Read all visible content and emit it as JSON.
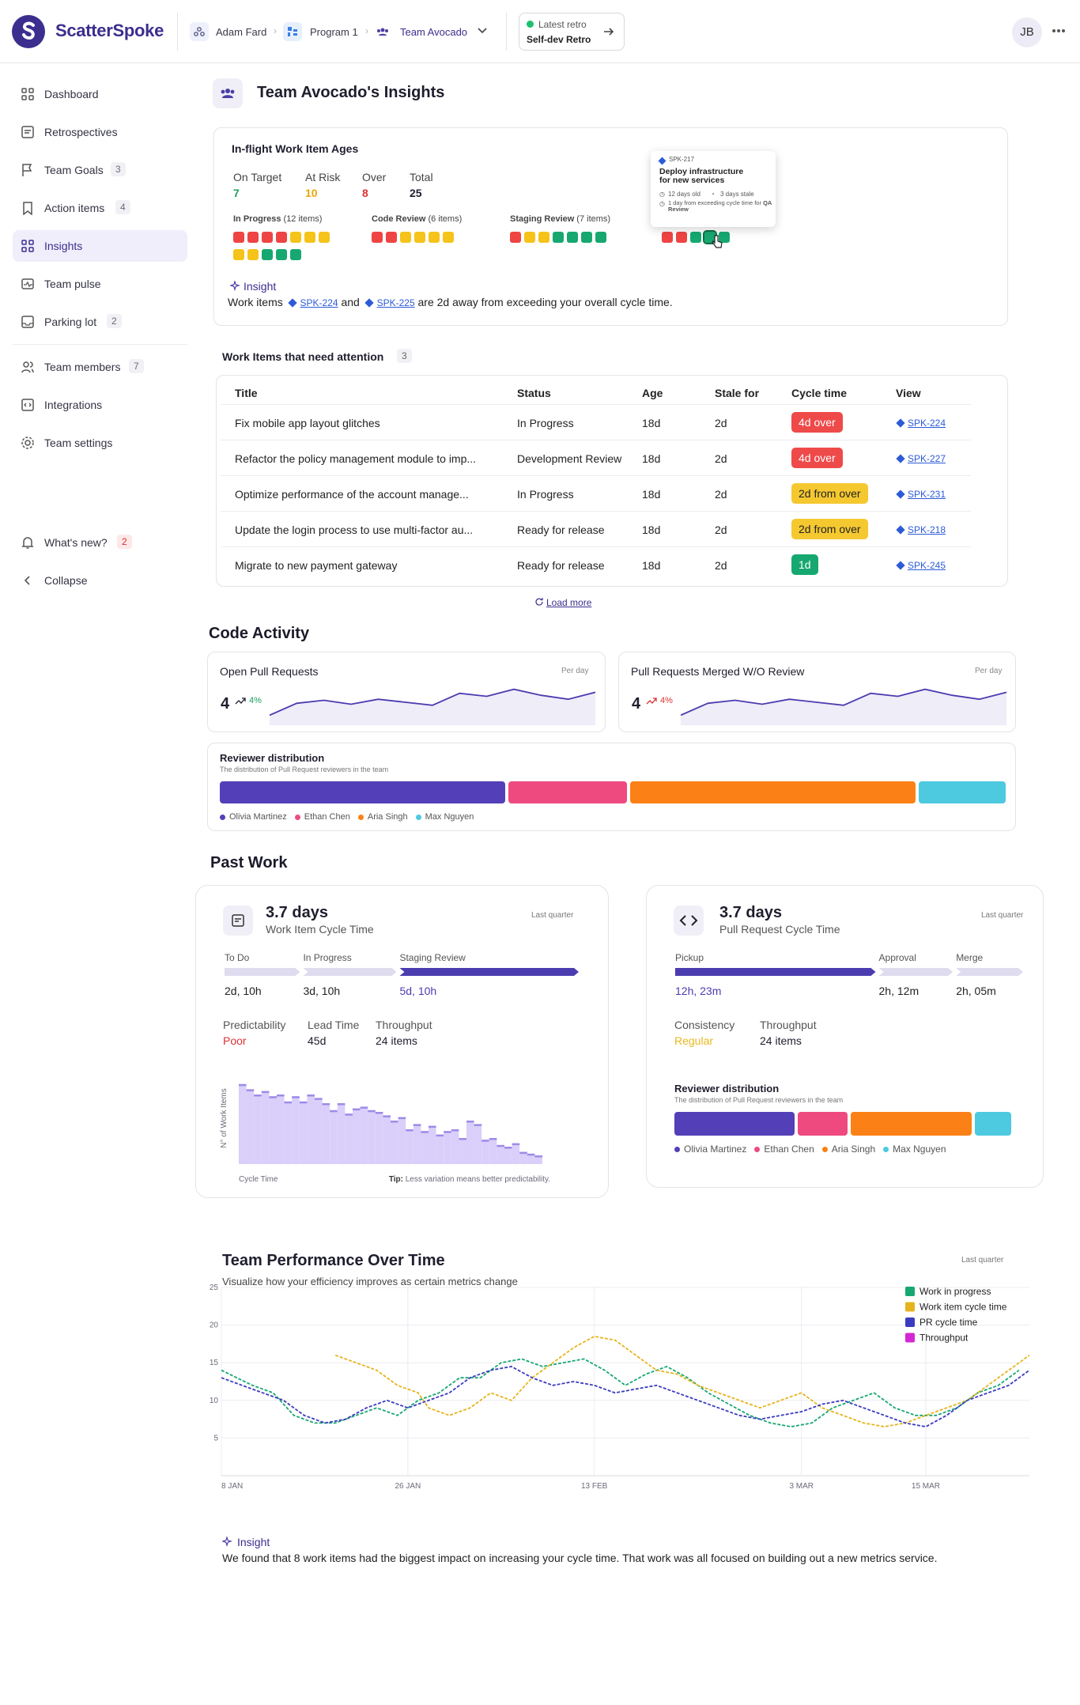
{
  "app": {
    "name": "ScatterSpoke"
  },
  "breadcrumb": {
    "org": "Adam Fard",
    "program": "Program 1",
    "team": "Team Avocado"
  },
  "retro": {
    "label": "Latest retro",
    "name": "Self-dev Retro"
  },
  "user": {
    "initials": "JB"
  },
  "sidebar": {
    "items": [
      {
        "label": "Dashboard"
      },
      {
        "label": "Retrospectives"
      },
      {
        "label": "Team Goals",
        "count": "3"
      },
      {
        "label": "Action items",
        "count": "4"
      },
      {
        "label": "Insights"
      },
      {
        "label": "Team pulse"
      },
      {
        "label": "Parking lot",
        "count": "2"
      },
      {
        "label": "Team members",
        "count": "7"
      },
      {
        "label": "Integrations"
      },
      {
        "label": "Team settings"
      }
    ],
    "whats_new": {
      "label": "What's new?",
      "count": "2"
    },
    "collapse": "Collapse"
  },
  "page": {
    "title": "Team Avocado's Insights"
  },
  "inflight": {
    "title": "In-flight Work Item Ages",
    "stats": [
      {
        "label": "On Target",
        "value": "7",
        "color": "#1ba160"
      },
      {
        "label": "At Risk",
        "value": "10",
        "color": "#e8a80c"
      },
      {
        "label": "Over",
        "value": "8",
        "color": "#e03131"
      },
      {
        "label": "Total",
        "value": "25",
        "color": "#1e1e2e"
      }
    ],
    "groups": [
      {
        "name": "In Progress",
        "count": "(12 items)",
        "colors": [
          "r",
          "r",
          "r",
          "r",
          "y",
          "y",
          "y",
          "y",
          "y",
          "g",
          "g",
          "g"
        ]
      },
      {
        "name": "Code Review",
        "count": "(6 items)",
        "colors": [
          "r",
          "r",
          "y",
          "y",
          "y",
          "y"
        ]
      },
      {
        "name": "Staging Review",
        "count": "(7 items)",
        "colors": [
          "r",
          "y",
          "y",
          "g",
          "g",
          "g",
          "g"
        ]
      },
      {
        "name": "",
        "count": "",
        "colors": [
          "r",
          "r",
          "g",
          "g",
          "g"
        ]
      }
    ],
    "tooltip": {
      "id": "SPK-217",
      "title": "Deploy infrastructure for new services",
      "age": "12 days old",
      "stale": "3 days stale",
      "note_prefix": "1 day from exceeding cycle time for ",
      "note_bold": "QA Review"
    },
    "insight": {
      "label": "Insight",
      "prefix": "Work items",
      "item1": "SPK-224",
      "and": "and",
      "item2": "SPK-225",
      "suffix": "are 2d away from exceeding your overall cycle time."
    }
  },
  "attention": {
    "title": "Work Items that need attention",
    "count": "3",
    "columns": [
      "Title",
      "Status",
      "Age",
      "Stale for",
      "Cycle time",
      "View"
    ],
    "rows": [
      {
        "title": "Fix mobile app layout glitches",
        "status": "In Progress",
        "age": "18d",
        "stale": "2d",
        "cycle": "4d over",
        "cycle_type": "red",
        "view": "SPK-224"
      },
      {
        "title": "Refactor the policy management module to imp...",
        "status": "Development Review",
        "age": "18d",
        "stale": "2d",
        "cycle": "4d over",
        "cycle_type": "red",
        "view": "SPK-227"
      },
      {
        "title": "Optimize performance of the account manage...",
        "status": "In Progress",
        "age": "18d",
        "stale": "2d",
        "cycle": "2d from over",
        "cycle_type": "yellow",
        "view": "SPK-231"
      },
      {
        "title": "Update the login process to use multi-factor au...",
        "status": "Ready for release",
        "age": "18d",
        "stale": "2d",
        "cycle": "2d from over",
        "cycle_type": "yellow",
        "view": "SPK-218"
      },
      {
        "title": "Migrate to new payment gateway",
        "status": "Ready for release",
        "age": "18d",
        "stale": "2d",
        "cycle": "1d",
        "cycle_type": "green",
        "view": "SPK-245"
      }
    ],
    "load_more": "Load more"
  },
  "code_activity": {
    "title": "Code Activity",
    "open_pr": {
      "title": "Open Pull Requests",
      "period": "Per day",
      "value": "4",
      "change": "4%",
      "change_color": "#1ba160",
      "trend": [
        3,
        4.2,
        4.5,
        4.1,
        4.6,
        4.3,
        4.0,
        5.2,
        4.9,
        5.6,
        5.0,
        4.6,
        5.3
      ]
    },
    "merged_pr": {
      "title": "Pull Requests Merged W/O Review",
      "period": "Per day",
      "value": "4",
      "change": "4%",
      "change_color": "#e03131",
      "trend": [
        3,
        4.2,
        4.5,
        4.1,
        4.6,
        4.3,
        4.0,
        5.2,
        4.9,
        5.6,
        5.0,
        4.6,
        5.3
      ]
    },
    "reviewers": {
      "title": "Reviewer distribution",
      "subtitle": "The distribution of Pull Request reviewers in the team",
      "people": [
        {
          "name": "Olivia Martinez",
          "share": 0.36,
          "color": "#5340b8"
        },
        {
          "name": "Ethan Chen",
          "share": 0.15,
          "color": "#ee4a80"
        },
        {
          "name": "Aria Singh",
          "share": 0.36,
          "color": "#fb8116"
        },
        {
          "name": "Max Nguyen",
          "share": 0.11,
          "color": "#4dc9e0"
        }
      ]
    }
  },
  "past_work": {
    "title": "Past Work",
    "work_item": {
      "value": "3.7 days",
      "label": "Work Item Cycle Time",
      "period": "Last quarter",
      "stages": [
        {
          "name": "To Do",
          "value": "2d, 10h",
          "share": 0.22
        },
        {
          "name": "In Progress",
          "value": "3d, 10h",
          "share": 0.27
        },
        {
          "name": "Staging Review",
          "value": "5d, 10h",
          "share": 0.51
        }
      ],
      "metrics": [
        {
          "label": "Predictability",
          "value": "Poor",
          "color": "#e03131"
        },
        {
          "label": "Lead Time",
          "value": "45d",
          "color": "#1e1e2e"
        },
        {
          "label": "Throughput",
          "value": "24 items",
          "color": "#1e1e2e"
        }
      ],
      "ylabel": "N° of Work Items",
      "xlabel": "Cycle Time",
      "tip_bold": "Tip:",
      "tip": "Less variation means better predictability.",
      "histogram": [
        92,
        86,
        80,
        84,
        78,
        80,
        72,
        78,
        72,
        80,
        76,
        70,
        62,
        70,
        58,
        64,
        66,
        62,
        60,
        56,
        50,
        54,
        40,
        46,
        38,
        44,
        34,
        38,
        40,
        30,
        50,
        46,
        28,
        30,
        22,
        20,
        24,
        14,
        12,
        10
      ]
    },
    "pr_cycle": {
      "value": "3.7 days",
      "label": "Pull Request Cycle Time",
      "period": "Last quarter",
      "stages": [
        {
          "name": "Pickup",
          "value": "12h, 23m",
          "share": 0.58
        },
        {
          "name": "Approval",
          "value": "2h, 12m",
          "share": 0.22
        },
        {
          "name": "Merge",
          "value": "2h, 05m",
          "share": 0.2
        }
      ],
      "metrics": [
        {
          "label": "Consistency",
          "value": "Regular",
          "color": "#e8b820"
        },
        {
          "label": "Throughput",
          "value": "24 items",
          "color": "#1e1e2e"
        }
      ],
      "reviewers": {
        "title": "Reviewer distribution",
        "subtitle": "The distribution of Pull Request reviewers in the team"
      }
    }
  },
  "performance": {
    "title": "Team Performance Over Time",
    "subtitle": "Visualize how your efficiency improves as certain metrics change",
    "period": "Last quarter",
    "insight_label": "Insight",
    "insight": "We found that 8 work items had the biggest impact on increasing your cycle time.  That work was all focused on building out a new metrics service."
  },
  "chart_data": {
    "type": "line",
    "ylim": [
      0,
      25
    ],
    "yticks": [
      "5",
      "10",
      "15",
      "20",
      "25"
    ],
    "xticks": [
      "8 JAN",
      "26 JAN",
      "13 FEB",
      "3 MAR",
      "15 MAR"
    ],
    "x_start_day": 0,
    "x_end_day": 78,
    "series": [
      {
        "name": "Work in progress",
        "color": "#16a870",
        "values": [
          [
            0,
            14
          ],
          [
            3,
            12
          ],
          [
            5,
            11
          ],
          [
            7,
            8
          ],
          [
            9,
            7
          ],
          [
            11,
            7
          ],
          [
            13,
            8
          ],
          [
            15,
            9
          ],
          [
            17,
            8
          ],
          [
            19,
            10
          ],
          [
            21,
            11
          ],
          [
            23,
            13
          ],
          [
            25,
            13
          ],
          [
            27,
            15
          ],
          [
            29,
            15.5
          ],
          [
            31,
            14.5
          ],
          [
            33,
            15
          ],
          [
            35,
            15.5
          ],
          [
            37,
            14
          ],
          [
            39,
            12
          ],
          [
            41,
            13.5
          ],
          [
            43,
            14.5
          ],
          [
            45,
            13
          ],
          [
            47,
            11
          ],
          [
            49,
            9.5
          ],
          [
            51,
            8
          ],
          [
            53,
            7
          ],
          [
            55,
            6.5
          ],
          [
            57,
            7
          ],
          [
            59,
            9
          ],
          [
            61,
            10
          ],
          [
            63,
            11
          ],
          [
            65,
            9
          ],
          [
            67,
            8
          ],
          [
            69,
            8
          ],
          [
            71,
            9
          ],
          [
            73,
            11
          ],
          [
            75,
            12
          ],
          [
            77,
            14
          ]
        ]
      },
      {
        "name": "Work item cycle time",
        "color": "#e5b41d",
        "values": [
          [
            11,
            16
          ],
          [
            13,
            15
          ],
          [
            15,
            14
          ],
          [
            17,
            12
          ],
          [
            19,
            11
          ],
          [
            20,
            9
          ],
          [
            22,
            8
          ],
          [
            24,
            9
          ],
          [
            26,
            11
          ],
          [
            28,
            10
          ],
          [
            30,
            13
          ],
          [
            32,
            15
          ],
          [
            34,
            17
          ],
          [
            36,
            18.5
          ],
          [
            38,
            18
          ],
          [
            40,
            16
          ],
          [
            42,
            14
          ],
          [
            44,
            13.5
          ],
          [
            46,
            12
          ],
          [
            48,
            11
          ],
          [
            50,
            10
          ],
          [
            52,
            9
          ],
          [
            54,
            10
          ],
          [
            56,
            11
          ],
          [
            58,
            9
          ],
          [
            60,
            8
          ],
          [
            62,
            7
          ],
          [
            64,
            6.5
          ],
          [
            66,
            7
          ],
          [
            68,
            8
          ],
          [
            70,
            9
          ],
          [
            72,
            10
          ],
          [
            74,
            12
          ],
          [
            76,
            14
          ],
          [
            78,
            16
          ]
        ]
      },
      {
        "name": "PR cycle time",
        "color": "#3b3bc0",
        "values": [
          [
            0,
            13
          ],
          [
            2,
            12
          ],
          [
            4,
            11
          ],
          [
            6,
            10
          ],
          [
            8,
            8
          ],
          [
            10,
            7
          ],
          [
            12,
            7.5
          ],
          [
            14,
            9
          ],
          [
            16,
            10
          ],
          [
            18,
            9
          ],
          [
            20,
            10
          ],
          [
            22,
            11
          ],
          [
            24,
            13
          ],
          [
            26,
            14
          ],
          [
            28,
            14.5
          ],
          [
            30,
            13
          ],
          [
            32,
            12
          ],
          [
            34,
            12.5
          ],
          [
            36,
            12
          ],
          [
            38,
            11
          ],
          [
            40,
            11.5
          ],
          [
            42,
            12
          ],
          [
            44,
            11
          ],
          [
            46,
            10
          ],
          [
            48,
            9
          ],
          [
            50,
            8
          ],
          [
            52,
            7.5
          ],
          [
            54,
            8
          ],
          [
            56,
            8.5
          ],
          [
            58,
            9.5
          ],
          [
            60,
            10
          ],
          [
            62,
            9
          ],
          [
            64,
            8
          ],
          [
            66,
            7
          ],
          [
            68,
            6.5
          ],
          [
            70,
            8
          ],
          [
            72,
            10
          ],
          [
            74,
            11
          ],
          [
            76,
            12
          ],
          [
            78,
            14
          ]
        ]
      },
      {
        "name": "Throughput",
        "color": "#d327d3",
        "values": []
      }
    ]
  }
}
